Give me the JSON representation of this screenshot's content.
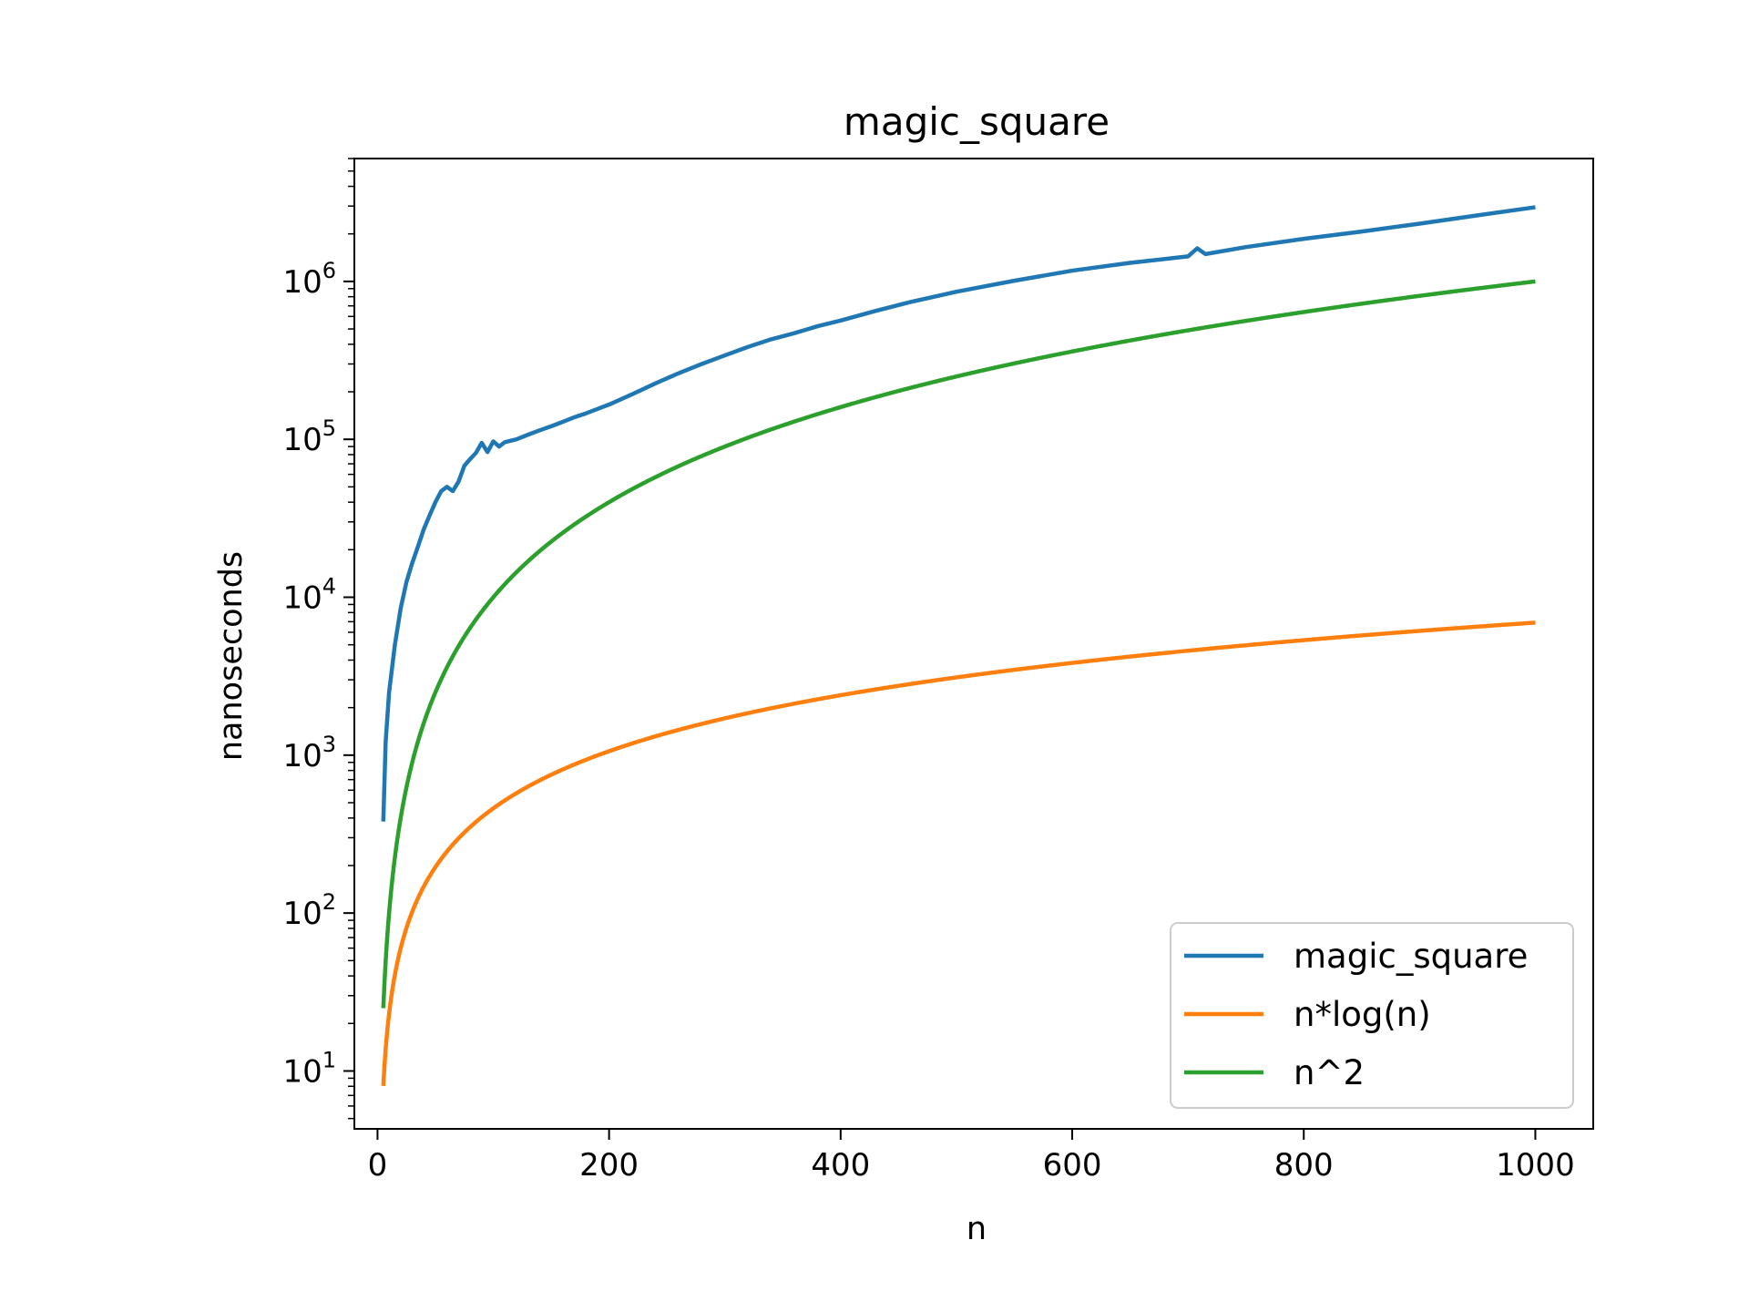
{
  "chart_data": {
    "type": "line",
    "title": "magic_square",
    "xlabel": "n",
    "ylabel": "nanoseconds",
    "xlim": [
      -20,
      1050
    ],
    "ylim": [
      4.3,
      6000000
    ],
    "yscale": "log",
    "xticks": [
      0,
      200,
      400,
      600,
      800,
      1000
    ],
    "xtick_labels": [
      "0",
      "200",
      "400",
      "600",
      "800",
      "1000"
    ],
    "yticks": [
      10,
      100,
      1000,
      10000,
      100000,
      1000000
    ],
    "ytick_labels": [
      {
        "base": "10",
        "exp": "1"
      },
      {
        "base": "10",
        "exp": "2"
      },
      {
        "base": "10",
        "exp": "3"
      },
      {
        "base": "10",
        "exp": "4"
      },
      {
        "base": "10",
        "exp": "5"
      },
      {
        "base": "10",
        "exp": "6"
      }
    ],
    "grid": false,
    "legend_position": "lower-right",
    "series": [
      {
        "name": "magic_square",
        "color": "#1f77b4",
        "x": [
          5,
          7,
          10,
          15,
          20,
          25,
          30,
          35,
          40,
          45,
          50,
          55,
          60,
          65,
          70,
          75,
          80,
          85,
          90,
          95,
          100,
          105,
          110,
          120,
          130,
          140,
          150,
          160,
          170,
          180,
          200,
          220,
          240,
          260,
          280,
          300,
          320,
          340,
          360,
          380,
          400,
          430,
          460,
          500,
          550,
          600,
          650,
          700,
          708,
          715,
          750,
          800,
          850,
          900,
          950,
          1000
        ],
        "y": [
          380,
          1200,
          2500,
          5000,
          8500,
          12500,
          16500,
          21000,
          27000,
          33000,
          40000,
          47000,
          50000,
          47000,
          54000,
          68000,
          75000,
          82000,
          95000,
          83000,
          97000,
          90000,
          96000,
          100000,
          107000,
          114000,
          121000,
          129000,
          138000,
          146000,
          166000,
          193000,
          226000,
          262000,
          300000,
          340000,
          385000,
          430000,
          470000,
          520000,
          565000,
          650000,
          740000,
          860000,
          1010000,
          1170000,
          1310000,
          1440000,
          1620000,
          1490000,
          1650000,
          1860000,
          2070000,
          2320000,
          2620000,
          2950000
        ]
      },
      {
        "name": "n*log(n)",
        "color": "#ff7f0e",
        "fn": "nlogn",
        "x_start": 5,
        "x_end": 1000
      },
      {
        "name": "n^2",
        "color": "#2ca02c",
        "fn": "n2",
        "x_start": 5,
        "x_end": 1000
      }
    ]
  }
}
